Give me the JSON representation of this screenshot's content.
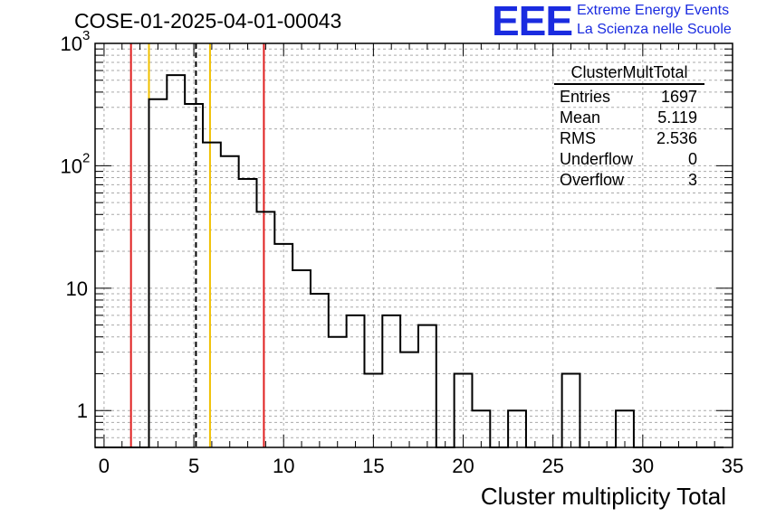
{
  "title": "COSE-01-2025-04-01-00043",
  "logo": {
    "text": "EEE",
    "line1": "Extreme Energy Events",
    "line2": "La Scienza nelle Scuole",
    "color": "#1a2be0"
  },
  "stats": {
    "name": "ClusterMultTotal",
    "rows": [
      {
        "label": "Entries",
        "value": "1697"
      },
      {
        "label": "Mean",
        "value": "5.119"
      },
      {
        "label": "RMS",
        "value": "2.536"
      },
      {
        "label": "Underflow",
        "value": "0"
      },
      {
        "label": "Overflow",
        "value": "3"
      }
    ]
  },
  "chart_data": {
    "type": "histogram",
    "title": "COSE-01-2025-04-01-00043",
    "xlabel": "Cluster multiplicity Total",
    "ylabel": "",
    "xlim": [
      -0.5,
      35
    ],
    "ylim": [
      0.5,
      1000
    ],
    "yscale": "log",
    "grid": true,
    "bin_width": 1,
    "bin_edges_start": -0.5,
    "counts": [
      0,
      0,
      0,
      350,
      550,
      320,
      155,
      120,
      78,
      42,
      23,
      14,
      9,
      4,
      6,
      2,
      6,
      3,
      5,
      0,
      2,
      1,
      0,
      1,
      0,
      0,
      2,
      0,
      0,
      1,
      0,
      0,
      0,
      0,
      0
    ],
    "xticks": [
      0,
      5,
      10,
      15,
      20,
      25,
      30,
      35
    ],
    "yticks": [
      {
        "value": 1,
        "label": "1"
      },
      {
        "value": 10,
        "label": "10"
      },
      {
        "value": 100,
        "label": "10",
        "exp": "2"
      },
      {
        "value": 1000,
        "label": "10",
        "exp": "3"
      }
    ],
    "vlines": [
      {
        "x": 1.5,
        "color": "#e02020",
        "style": "solid"
      },
      {
        "x": 2.5,
        "color": "#f0c000",
        "style": "solid"
      },
      {
        "x": 5.119,
        "color": "#000000",
        "style": "dashed"
      },
      {
        "x": 5.9,
        "color": "#f0c000",
        "style": "solid"
      },
      {
        "x": 8.9,
        "color": "#e02020",
        "style": "solid"
      }
    ]
  }
}
